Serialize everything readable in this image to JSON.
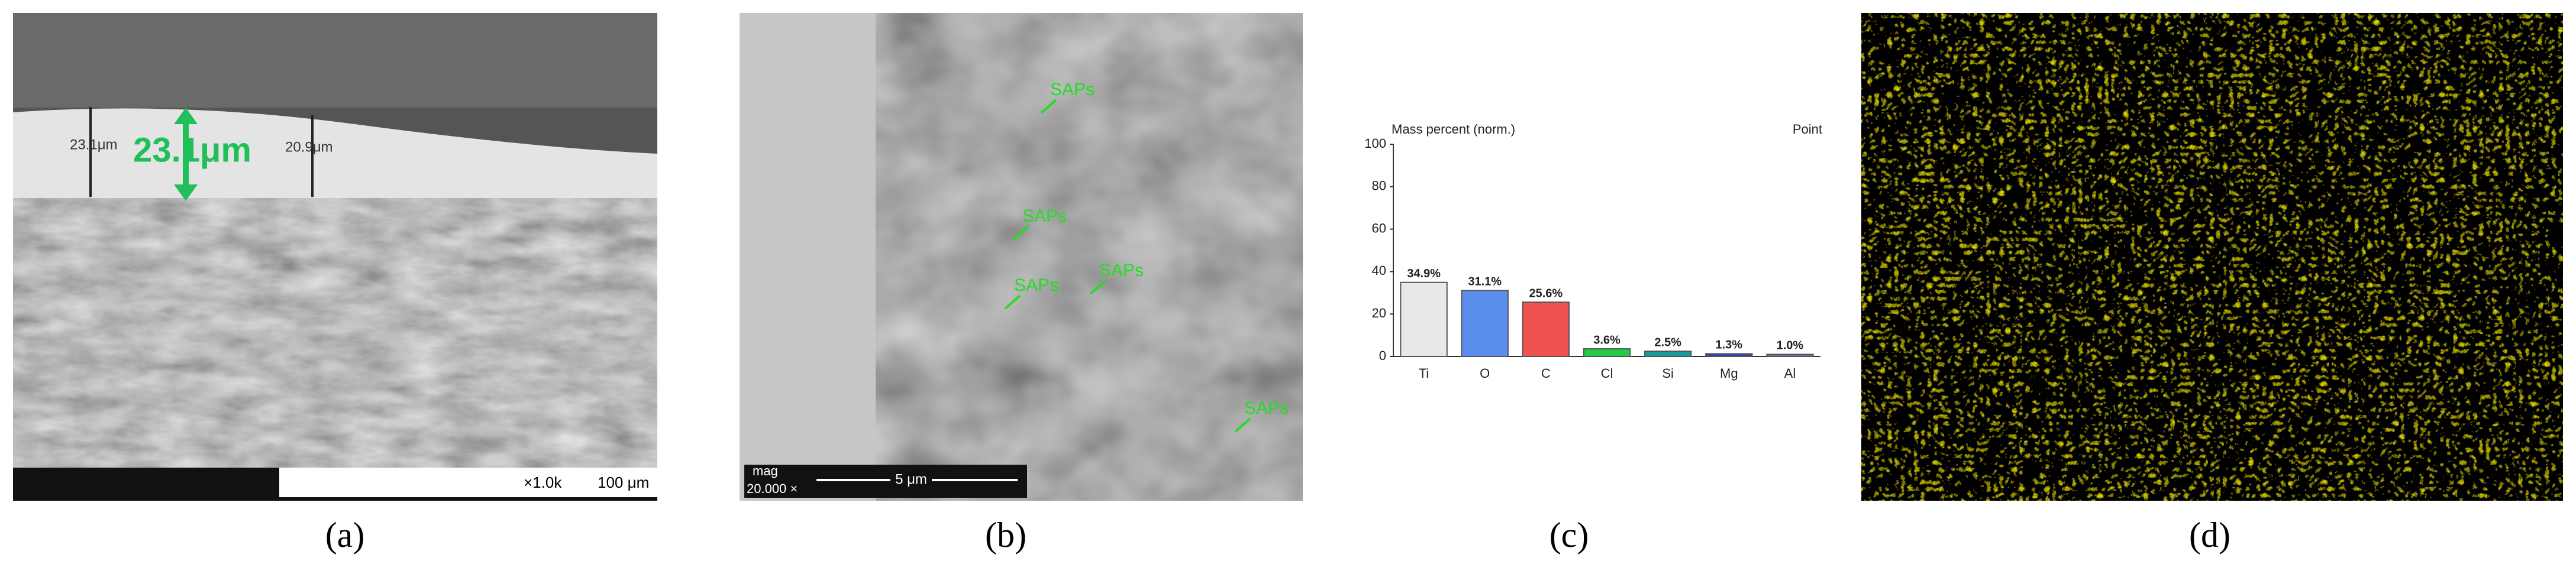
{
  "panels": {
    "labels": [
      "(a)",
      "(b)",
      "(c)",
      "(d)"
    ]
  },
  "panel_a": {
    "thickness": "23.1μm",
    "measure_left": "23.1μm",
    "measure_right": "20.9μm",
    "magnification": "×1.0k",
    "scale": "100 μm"
  },
  "panel_b": {
    "annotations": [
      "SAPs",
      "SAPs",
      "SAPs",
      "SAPs",
      "SAPs"
    ],
    "mag_label": "mag",
    "magnification": "20.000 ×",
    "scale": "5 μm"
  },
  "chart_data": {
    "type": "bar",
    "title": "Mass percent (norm.)",
    "subtitle": "Point",
    "categories": [
      "Ti",
      "O",
      "C",
      "Cl",
      "Si",
      "Mg",
      "Al"
    ],
    "values": [
      34.9,
      31.1,
      25.6,
      3.6,
      2.5,
      1.3,
      1.0
    ],
    "value_labels": [
      "34.9%",
      "31.1%",
      "25.6%",
      "3.6%",
      "2.5%",
      "1.3%",
      "1.0%"
    ],
    "colors": [
      "#e8e8e8",
      "#5b8def",
      "#f05252",
      "#22cc44",
      "#1a9a9a",
      "#3344aa",
      "#6677aa"
    ],
    "ylim": [
      0,
      100
    ],
    "yticks": [
      0,
      20,
      40,
      60,
      80,
      100
    ],
    "grid": false
  }
}
